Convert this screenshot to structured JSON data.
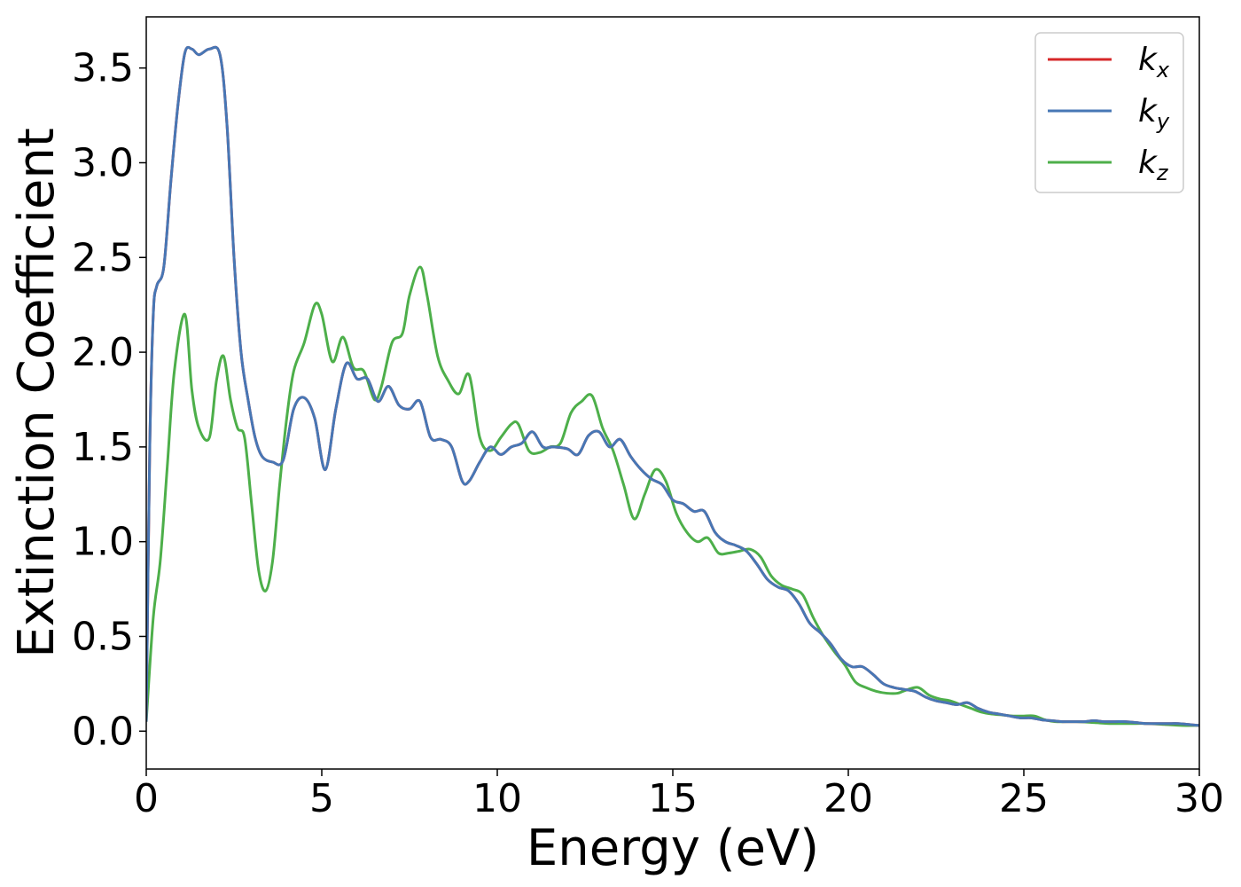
{
  "chart_data": {
    "type": "line",
    "xlabel": "Energy (eV)",
    "ylabel": "Extinction Coefficient",
    "xlim": [
      0,
      30
    ],
    "ylim": [
      -0.2,
      3.77
    ],
    "xticks": [
      0,
      5,
      10,
      15,
      20,
      25,
      30
    ],
    "xtick_labels": [
      "0",
      "5",
      "10",
      "15",
      "20",
      "25",
      "30"
    ],
    "yticks": [
      0.0,
      0.5,
      1.0,
      1.5,
      2.0,
      2.5,
      3.0,
      3.5
    ],
    "ytick_labels": [
      "0.0",
      "0.5",
      "1.0",
      "1.5",
      "2.0",
      "2.5",
      "3.0",
      "3.5"
    ],
    "grid": false,
    "legend_position": "top-right",
    "series": [
      {
        "name": "k_x",
        "base": "k",
        "sub": "x",
        "color": "#d62728",
        "x": [
          0,
          0.1,
          0.2,
          0.3,
          0.5,
          0.7,
          0.9,
          1.1,
          1.3,
          1.5,
          1.8,
          2.1,
          2.3,
          2.5,
          2.7,
          2.9,
          3.1,
          3.3,
          3.6,
          3.9,
          4.2,
          4.5,
          4.8,
          5.1,
          5.4,
          5.7,
          6.0,
          6.3,
          6.6,
          6.9,
          7.2,
          7.5,
          7.8,
          8.1,
          8.4,
          8.7,
          9.0,
          9.2,
          9.5,
          9.8,
          10.1,
          10.4,
          10.7,
          11.0,
          11.3,
          11.6,
          12.0,
          12.3,
          12.6,
          12.9,
          13.2,
          13.5,
          13.8,
          14.1,
          14.4,
          14.7,
          15.0,
          15.3,
          15.6,
          15.9,
          16.2,
          16.5,
          16.8,
          17.1,
          17.4,
          17.7,
          18.0,
          18.3,
          18.6,
          18.9,
          19.2,
          19.5,
          19.8,
          20.1,
          20.4,
          20.7,
          21.0,
          21.3,
          21.6,
          21.9,
          22.2,
          22.5,
          22.8,
          23.1,
          23.4,
          23.7,
          24.0,
          24.3,
          24.6,
          24.9,
          25.2,
          25.5,
          25.8,
          26.1,
          26.4,
          26.7,
          27.0,
          27.3,
          27.6,
          27.9,
          28.2,
          28.5,
          28.8,
          29.1,
          29.4,
          29.7,
          30.0
        ],
        "y": [
          0.05,
          1.5,
          2.2,
          2.35,
          2.45,
          2.9,
          3.3,
          3.58,
          3.6,
          3.57,
          3.6,
          3.57,
          3.2,
          2.5,
          2.0,
          1.75,
          1.55,
          1.45,
          1.42,
          1.43,
          1.7,
          1.76,
          1.65,
          1.38,
          1.7,
          1.94,
          1.86,
          1.86,
          1.74,
          1.82,
          1.72,
          1.7,
          1.74,
          1.55,
          1.54,
          1.5,
          1.32,
          1.32,
          1.42,
          1.5,
          1.46,
          1.5,
          1.52,
          1.58,
          1.5,
          1.5,
          1.49,
          1.46,
          1.56,
          1.58,
          1.5,
          1.54,
          1.45,
          1.38,
          1.33,
          1.3,
          1.22,
          1.2,
          1.16,
          1.16,
          1.05,
          1.0,
          0.98,
          0.95,
          0.88,
          0.8,
          0.76,
          0.74,
          0.67,
          0.57,
          0.52,
          0.46,
          0.38,
          0.34,
          0.34,
          0.3,
          0.25,
          0.23,
          0.22,
          0.21,
          0.18,
          0.16,
          0.15,
          0.14,
          0.15,
          0.12,
          0.1,
          0.09,
          0.08,
          0.07,
          0.07,
          0.06,
          0.055,
          0.05,
          0.05,
          0.05,
          0.055,
          0.05,
          0.05,
          0.05,
          0.045,
          0.04,
          0.04,
          0.04,
          0.04,
          0.035,
          0.03
        ]
      },
      {
        "name": "k_y",
        "base": "k",
        "sub": "y",
        "color": "#4777b5",
        "x": [
          0,
          0.1,
          0.2,
          0.3,
          0.5,
          0.7,
          0.9,
          1.1,
          1.3,
          1.5,
          1.8,
          2.1,
          2.3,
          2.5,
          2.7,
          2.9,
          3.1,
          3.3,
          3.6,
          3.9,
          4.2,
          4.5,
          4.8,
          5.1,
          5.4,
          5.7,
          6.0,
          6.3,
          6.6,
          6.9,
          7.2,
          7.5,
          7.8,
          8.1,
          8.4,
          8.7,
          9.0,
          9.2,
          9.5,
          9.8,
          10.1,
          10.4,
          10.7,
          11.0,
          11.3,
          11.6,
          12.0,
          12.3,
          12.6,
          12.9,
          13.2,
          13.5,
          13.8,
          14.1,
          14.4,
          14.7,
          15.0,
          15.3,
          15.6,
          15.9,
          16.2,
          16.5,
          16.8,
          17.1,
          17.4,
          17.7,
          18.0,
          18.3,
          18.6,
          18.9,
          19.2,
          19.5,
          19.8,
          20.1,
          20.4,
          20.7,
          21.0,
          21.3,
          21.6,
          21.9,
          22.2,
          22.5,
          22.8,
          23.1,
          23.4,
          23.7,
          24.0,
          24.3,
          24.6,
          24.9,
          25.2,
          25.5,
          25.8,
          26.1,
          26.4,
          26.7,
          27.0,
          27.3,
          27.6,
          27.9,
          28.2,
          28.5,
          28.8,
          29.1,
          29.4,
          29.7,
          30.0
        ],
        "y": [
          0.05,
          1.5,
          2.2,
          2.35,
          2.45,
          2.9,
          3.3,
          3.58,
          3.6,
          3.57,
          3.6,
          3.57,
          3.2,
          2.5,
          2.0,
          1.75,
          1.55,
          1.45,
          1.42,
          1.43,
          1.7,
          1.76,
          1.65,
          1.38,
          1.7,
          1.94,
          1.86,
          1.86,
          1.74,
          1.82,
          1.72,
          1.7,
          1.74,
          1.55,
          1.54,
          1.5,
          1.32,
          1.32,
          1.42,
          1.5,
          1.46,
          1.5,
          1.52,
          1.58,
          1.5,
          1.5,
          1.49,
          1.46,
          1.56,
          1.58,
          1.5,
          1.54,
          1.45,
          1.38,
          1.33,
          1.3,
          1.22,
          1.2,
          1.16,
          1.16,
          1.05,
          1.0,
          0.98,
          0.95,
          0.88,
          0.8,
          0.76,
          0.74,
          0.67,
          0.57,
          0.52,
          0.46,
          0.38,
          0.34,
          0.34,
          0.3,
          0.25,
          0.23,
          0.22,
          0.21,
          0.18,
          0.16,
          0.15,
          0.14,
          0.15,
          0.12,
          0.1,
          0.09,
          0.08,
          0.07,
          0.07,
          0.06,
          0.055,
          0.05,
          0.05,
          0.05,
          0.055,
          0.05,
          0.05,
          0.05,
          0.045,
          0.04,
          0.04,
          0.04,
          0.04,
          0.035,
          0.03
        ]
      },
      {
        "name": "k_z",
        "base": "k",
        "sub": "z",
        "color": "#4daf4a",
        "x": [
          0,
          0.2,
          0.4,
          0.6,
          0.8,
          1.1,
          1.3,
          1.5,
          1.8,
          2.0,
          2.2,
          2.4,
          2.6,
          2.8,
          3.0,
          3.2,
          3.4,
          3.6,
          3.8,
          4.0,
          4.2,
          4.5,
          4.8,
          5.0,
          5.3,
          5.6,
          5.9,
          6.2,
          6.5,
          6.7,
          7.0,
          7.3,
          7.5,
          7.8,
          8.0,
          8.3,
          8.6,
          8.9,
          9.2,
          9.5,
          9.8,
          10.1,
          10.4,
          10.6,
          10.9,
          11.2,
          11.5,
          11.8,
          12.1,
          12.4,
          12.7,
          13.0,
          13.3,
          13.6,
          13.9,
          14.2,
          14.5,
          14.8,
          15.1,
          15.4,
          15.7,
          16.0,
          16.3,
          16.6,
          16.9,
          17.2,
          17.5,
          17.8,
          18.1,
          18.4,
          18.7,
          19.0,
          19.3,
          19.6,
          19.9,
          20.2,
          20.5,
          20.8,
          21.1,
          21.4,
          21.7,
          22.0,
          22.3,
          22.6,
          22.9,
          23.2,
          23.5,
          23.8,
          24.1,
          24.4,
          24.7,
          25.0,
          25.3,
          25.6,
          25.9,
          26.5,
          27.0,
          27.5,
          28.0,
          28.5,
          29.0,
          29.5,
          30.0
        ],
        "y": [
          0.05,
          0.6,
          0.9,
          1.4,
          1.9,
          2.2,
          1.8,
          1.6,
          1.55,
          1.85,
          1.98,
          1.75,
          1.6,
          1.55,
          1.2,
          0.85,
          0.74,
          0.9,
          1.3,
          1.65,
          1.9,
          2.05,
          2.25,
          2.2,
          1.95,
          2.08,
          1.92,
          1.9,
          1.75,
          1.82,
          2.05,
          2.1,
          2.3,
          2.45,
          2.3,
          1.98,
          1.85,
          1.78,
          1.88,
          1.55,
          1.48,
          1.55,
          1.62,
          1.62,
          1.48,
          1.47,
          1.5,
          1.52,
          1.68,
          1.74,
          1.77,
          1.6,
          1.48,
          1.3,
          1.12,
          1.25,
          1.38,
          1.32,
          1.15,
          1.05,
          1.0,
          1.02,
          0.94,
          0.94,
          0.95,
          0.96,
          0.92,
          0.82,
          0.77,
          0.75,
          0.72,
          0.6,
          0.5,
          0.42,
          0.35,
          0.26,
          0.23,
          0.21,
          0.2,
          0.2,
          0.22,
          0.23,
          0.19,
          0.17,
          0.16,
          0.14,
          0.12,
          0.1,
          0.09,
          0.085,
          0.08,
          0.08,
          0.08,
          0.06,
          0.05,
          0.05,
          0.045,
          0.04,
          0.04,
          0.04,
          0.035,
          0.03,
          0.03
        ]
      }
    ]
  }
}
